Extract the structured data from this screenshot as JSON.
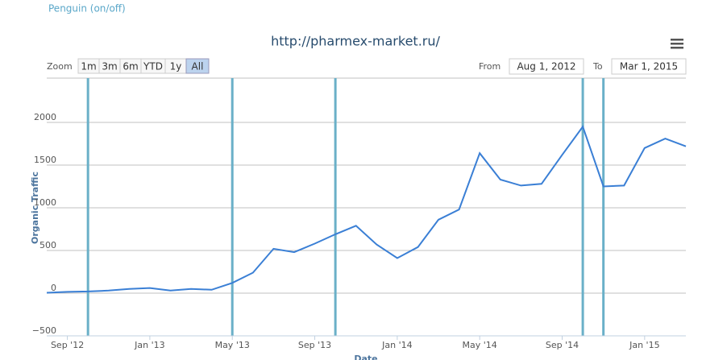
{
  "controls": {
    "toggle": "Penguin (on/off)",
    "zoom_label": "Zoom",
    "zoom_buttons": [
      "1m",
      "3m",
      "6m",
      "YTD",
      "1y",
      "All"
    ],
    "zoom_selected": "All",
    "from_label": "From",
    "from_value": "Aug 1, 2012",
    "to_label": "To",
    "to_value": "Mar 1, 2015"
  },
  "chart_data": {
    "type": "line",
    "title": "http://pharmex-market.ru/",
    "y_label": "Organic Traffic",
    "x_label": "Date",
    "color": "#3a7fd5",
    "plot_line_color": "#6ab0c8",
    "x": [
      "2012-08",
      "2012-09",
      "2012-10",
      "2012-11",
      "2012-12",
      "2013-01",
      "2013-02",
      "2013-03",
      "2013-04",
      "2013-05",
      "2013-06",
      "2013-07",
      "2013-08",
      "2013-09",
      "2013-10",
      "2013-11",
      "2013-12",
      "2014-01",
      "2014-02",
      "2014-03",
      "2014-04",
      "2014-05",
      "2014-06",
      "2014-07",
      "2014-08",
      "2014-09",
      "2014-10",
      "2014-11",
      "2014-12",
      "2015-01",
      "2015-02",
      "2015-03"
    ],
    "values": [
      5,
      15,
      20,
      30,
      50,
      60,
      30,
      50,
      40,
      120,
      240,
      520,
      480,
      580,
      690,
      790,
      570,
      410,
      540,
      860,
      980,
      1640,
      1330,
      1260,
      1280,
      1620,
      1950,
      1250,
      1260,
      1700,
      1810,
      1720
    ],
    "plot_lines": [
      "2012-10",
      "2013-05",
      "2013-10",
      "2014-10",
      "2014-11"
    ],
    "xlim": [
      "2012-08",
      "2015-03"
    ],
    "xticks": [
      {
        "value": "2012-09",
        "label": "Sep '12"
      },
      {
        "value": "2013-01",
        "label": "Jan '13"
      },
      {
        "value": "2013-05",
        "label": "May '13"
      },
      {
        "value": "2013-09",
        "label": "Sep '13"
      },
      {
        "value": "2014-01",
        "label": "Jan '14"
      },
      {
        "value": "2014-05",
        "label": "May '14"
      },
      {
        "value": "2014-09",
        "label": "Sep '14"
      },
      {
        "value": "2015-01",
        "label": "Jan '15"
      }
    ],
    "ylim": [
      -500,
      2500
    ],
    "yticks": [
      {
        "value": -500,
        "label": "−500"
      },
      0,
      500,
      1000,
      1500,
      2000
    ],
    "grid": true
  }
}
